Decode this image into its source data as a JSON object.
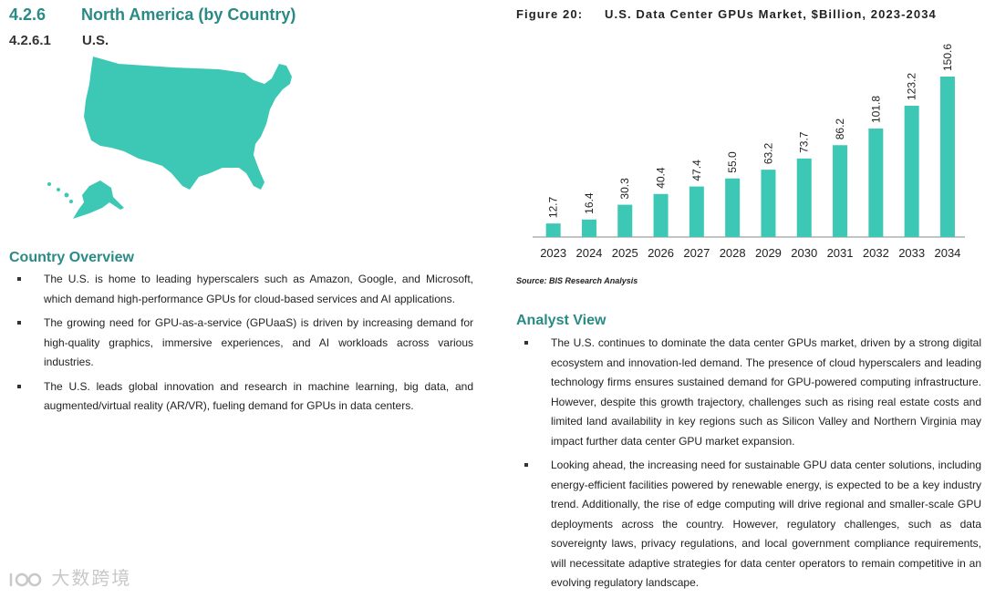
{
  "heading": {
    "number": "4.2.6",
    "title": "North America (by Country)"
  },
  "subheading": {
    "number": "4.2.6.1",
    "title": "U.S."
  },
  "colors": {
    "accent": "#2a8a85",
    "bar": "#3cc8b4",
    "map": "#3cc8b4"
  },
  "map": {
    "icon": "us-map-icon"
  },
  "country_overview": {
    "title": "Country Overview",
    "bullets": [
      "The U.S. is home to leading hyperscalers such as Amazon, Google, and Microsoft, which demand high-performance GPUs for cloud-based services and AI applications.",
      "The growing need for GPU-as-a-service (GPUaaS) is driven by increasing demand for high-quality graphics, immersive experiences, and AI workloads across various industries.",
      "The U.S. leads global innovation and research in machine learning, big data, and augmented/virtual reality (AR/VR), fueling demand for GPUs in data centers."
    ]
  },
  "figure": {
    "label": "Figure 20:",
    "caption": "U.S. Data Center GPUs Market, $Billion, 2023-2034",
    "source": "Source: BIS Research Analysis"
  },
  "chart_data": {
    "type": "bar",
    "title": "U.S. Data Center GPUs Market, $Billion, 2023-2034",
    "categories": [
      "2023",
      "2024",
      "2025",
      "2026",
      "2027",
      "2028",
      "2029",
      "2030",
      "2031",
      "2032",
      "2033",
      "2034"
    ],
    "values": [
      12.7,
      16.4,
      30.3,
      40.4,
      47.4,
      55.0,
      63.2,
      73.7,
      86.2,
      101.8,
      123.2,
      150.6
    ],
    "value_labels": [
      "12.7",
      "16.4",
      "30.3",
      "40.4",
      "47.4",
      "55.0",
      "63.2",
      "73.7",
      "86.2",
      "101.8",
      "123.2",
      "150.6"
    ],
    "ylim": [
      0,
      150.6
    ],
    "grid": false,
    "legend": "none",
    "xlabel": "",
    "ylabel": ""
  },
  "analyst_view": {
    "title": "Analyst View",
    "bullets": [
      "The U.S. continues to dominate the data center GPUs market, driven by a strong digital ecosystem and innovation-led demand. The presence of cloud hyperscalers and leading technology firms ensures sustained demand for GPU-powered computing infrastructure. However, despite this growth trajectory, challenges such as rising real estate costs and limited land availability in key regions such as Silicon Valley and Northern Virginia may impact further data center GPU market expansion.",
      "Looking ahead, the increasing need for sustainable GPU data center solutions, including energy-efficient facilities powered by renewable energy, is expected to be a key industry trend. Additionally, the rise of edge computing will drive regional and smaller-scale GPU deployments across the country. However, regulatory challenges, such as data sovereignty laws, privacy regulations, and local government compliance requirements, will necessitate adaptive strategies for data center operators to remain competitive in an evolving regulatory landscape."
    ]
  },
  "watermark": {
    "text": "大数跨境",
    "icon": "brand-logo-icon"
  }
}
